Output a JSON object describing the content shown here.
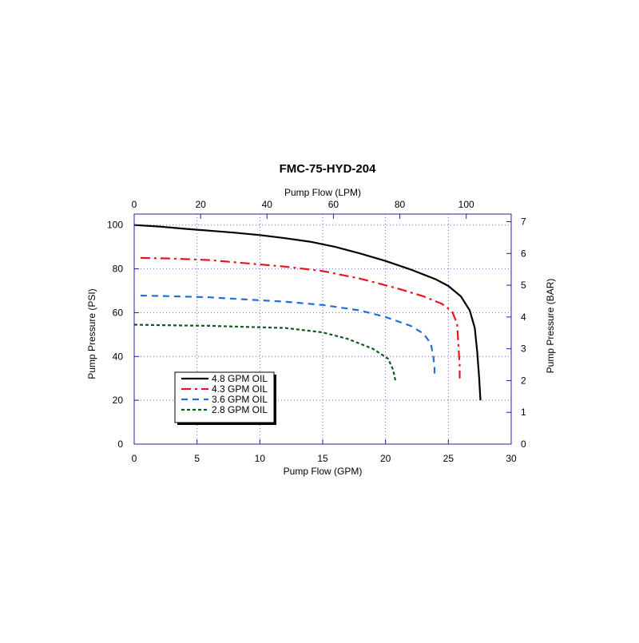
{
  "chart_data": {
    "type": "line",
    "title": "FMC-75-HYD-204",
    "xlabel": "Pump Flow (GPM)",
    "x2label": "Pump Flow (LPM)",
    "ylabel": "Pump Pressure (PSI)",
    "y2label": "Pump Pressure (BAR)",
    "xlim": [
      0,
      30
    ],
    "ylim": [
      0,
      105
    ],
    "x2lim": [
      0,
      113.55
    ],
    "y2lim": [
      0,
      7.24
    ],
    "x_ticks": [
      0,
      5,
      10,
      15,
      20,
      25,
      30
    ],
    "y_ticks": [
      0,
      20,
      40,
      60,
      80,
      100
    ],
    "x2_ticks": [
      0,
      20,
      40,
      60,
      80,
      100
    ],
    "y2_ticks": [
      0,
      1,
      2,
      3,
      4,
      5,
      6,
      7
    ],
    "x_tick_labels": [
      "0",
      "5",
      "10",
      "15",
      "20",
      "25",
      "30"
    ],
    "y_tick_labels": [
      "0",
      "20",
      "40",
      "60",
      "80",
      "100"
    ],
    "x2_tick_labels": [
      "0",
      "20",
      "40",
      "60",
      "80",
      "100"
    ],
    "y2_tick_labels": [
      "0",
      "1",
      "2",
      "3",
      "4",
      "5",
      "6",
      "7"
    ],
    "grid": true,
    "legend_position": "bottom-left",
    "series": [
      {
        "name": "4.8 GPM OIL",
        "color": "#000000",
        "dash": "solid",
        "points": [
          [
            0,
            100
          ],
          [
            2,
            99.3
          ],
          [
            4,
            98.3
          ],
          [
            6,
            97.4
          ],
          [
            8,
            96.5
          ],
          [
            10,
            95.4
          ],
          [
            12,
            94
          ],
          [
            14,
            92.4
          ],
          [
            16,
            90
          ],
          [
            18,
            87
          ],
          [
            20,
            83.6
          ],
          [
            22,
            79.7
          ],
          [
            24,
            75.2
          ],
          [
            25,
            72.2
          ],
          [
            26,
            67.4
          ],
          [
            26.7,
            61
          ],
          [
            27.1,
            53
          ],
          [
            27.3,
            42
          ],
          [
            27.45,
            30
          ],
          [
            27.55,
            20
          ]
        ]
      },
      {
        "name": "4.3 GPM OIL",
        "color": "#e8141e",
        "dash": "dashdot",
        "points": [
          [
            0.5,
            85
          ],
          [
            3,
            84.7
          ],
          [
            6,
            84
          ],
          [
            9,
            82.5
          ],
          [
            12,
            81
          ],
          [
            15,
            79
          ],
          [
            18,
            75.5
          ],
          [
            21,
            71
          ],
          [
            23,
            67.5
          ],
          [
            24.5,
            64
          ],
          [
            25.3,
            60.5
          ],
          [
            25.7,
            55
          ],
          [
            25.8,
            45
          ],
          [
            25.9,
            36
          ],
          [
            25.9,
            30
          ]
        ]
      },
      {
        "name": "3.6 GPM OIL",
        "color": "#1e6ee0",
        "dash": "dash",
        "points": [
          [
            0.5,
            67.8
          ],
          [
            3,
            67.5
          ],
          [
            6,
            67
          ],
          [
            9,
            66
          ],
          [
            12,
            65
          ],
          [
            15,
            63.5
          ],
          [
            18,
            61
          ],
          [
            20,
            58
          ],
          [
            22,
            54
          ],
          [
            23,
            50.5
          ],
          [
            23.6,
            46
          ],
          [
            23.8,
            40
          ],
          [
            23.9,
            35
          ],
          [
            23.9,
            31
          ]
        ]
      },
      {
        "name": "2.8 GPM OIL",
        "color": "#0e5a1e",
        "dash": "dot",
        "points": [
          [
            0,
            54.5
          ],
          [
            3,
            54.2
          ],
          [
            6,
            54
          ],
          [
            9,
            53.5
          ],
          [
            12,
            53
          ],
          [
            15,
            51
          ],
          [
            17,
            48
          ],
          [
            19,
            43.5
          ],
          [
            20.2,
            39
          ],
          [
            20.6,
            34
          ],
          [
            20.8,
            28.5
          ]
        ]
      }
    ]
  }
}
